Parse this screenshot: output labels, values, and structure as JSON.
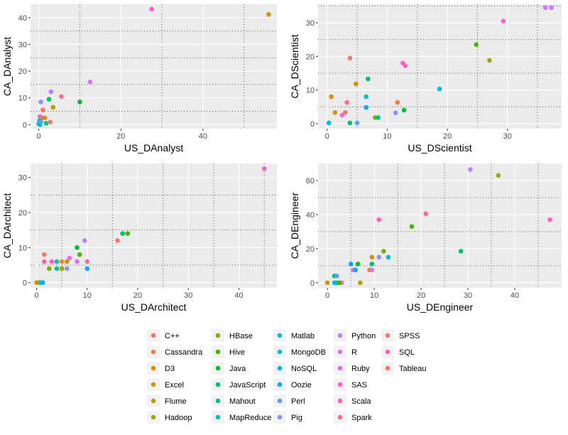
{
  "chart_data": [
    {
      "type": "scatter",
      "xlabel": "US_DAnalyst",
      "ylabel": "CA_DAnalyst",
      "xlim": [
        -2,
        58
      ],
      "ylim": [
        -1.5,
        45
      ],
      "xticks": [
        0,
        20,
        40
      ],
      "yticks": [
        0,
        10,
        20,
        30,
        40
      ],
      "minor_x": [
        10,
        30,
        50
      ],
      "minor_y": [
        5,
        15,
        25,
        35
      ],
      "points": [
        {
          "x": 27.5,
          "y": 43.2,
          "series": "SQL"
        },
        {
          "x": 56.0,
          "y": 41.2,
          "series": "Excel"
        },
        {
          "x": 12.5,
          "y": 16.0,
          "series": "R"
        },
        {
          "x": 10.0,
          "y": 8.5,
          "series": "Java"
        },
        {
          "x": 5.5,
          "y": 10.5,
          "series": "Spark"
        },
        {
          "x": 3.0,
          "y": 12.3,
          "series": "Python"
        },
        {
          "x": 2.5,
          "y": 9.5,
          "series": "JavaScript"
        },
        {
          "x": 3.5,
          "y": 6.5,
          "series": "Flume"
        },
        {
          "x": 0.5,
          "y": 8.5,
          "series": "Pig"
        },
        {
          "x": 1.0,
          "y": 5.5,
          "series": "C++"
        },
        {
          "x": 1.5,
          "y": 2.5,
          "series": "Cassandra"
        },
        {
          "x": 0.8,
          "y": 2.5,
          "series": "Hadoop"
        },
        {
          "x": 0.3,
          "y": 3.0,
          "series": "Scala"
        },
        {
          "x": 2.8,
          "y": 1.0,
          "series": "Tableau"
        },
        {
          "x": 1.8,
          "y": 0.5,
          "series": "Mahout"
        },
        {
          "x": 0.2,
          "y": 1.5,
          "series": "MongoDB"
        },
        {
          "x": 0.1,
          "y": 0.5,
          "series": "NoSQL"
        },
        {
          "x": 0.3,
          "y": 0.0,
          "series": "Oozie"
        },
        {
          "x": 0.0,
          "y": 0.3,
          "series": "Matlab"
        },
        {
          "x": 0.5,
          "y": 1.0,
          "series": "Perl"
        }
      ]
    },
    {
      "type": "scatter",
      "xlabel": "US_DScientist",
      "ylabel": "CA_DScientist",
      "xlim": [
        -1.5,
        39
      ],
      "ylim": [
        -1.5,
        35.5
      ],
      "xticks": [
        0,
        10,
        20,
        30
      ],
      "yticks": [
        0,
        10,
        20,
        30
      ],
      "minor_x": [
        5,
        15,
        25,
        35
      ],
      "minor_y": [
        5,
        15,
        25,
        35
      ],
      "points": [
        {
          "x": 36.3,
          "y": 34.5,
          "series": "R"
        },
        {
          "x": 37.3,
          "y": 34.5,
          "series": "Python"
        },
        {
          "x": 29.3,
          "y": 30.5,
          "series": "SQL"
        },
        {
          "x": 24.8,
          "y": 23.5,
          "series": "Hive"
        },
        {
          "x": 27.0,
          "y": 18.8,
          "series": "Hadoop"
        },
        {
          "x": 3.8,
          "y": 19.5,
          "series": "C++"
        },
        {
          "x": 12.6,
          "y": 18.0,
          "series": "Scala"
        },
        {
          "x": 13.0,
          "y": 17.2,
          "series": "SAS"
        },
        {
          "x": 6.8,
          "y": 13.3,
          "series": "JavaScript"
        },
        {
          "x": 4.8,
          "y": 11.8,
          "series": "Flume"
        },
        {
          "x": 18.7,
          "y": 10.3,
          "series": "MongoDB"
        },
        {
          "x": 0.7,
          "y": 8.0,
          "series": "D3"
        },
        {
          "x": 6.5,
          "y": 8.0,
          "series": "Matlab"
        },
        {
          "x": 11.7,
          "y": 6.3,
          "series": "Cassandra"
        },
        {
          "x": 3.3,
          "y": 6.3,
          "series": "Spark"
        },
        {
          "x": 6.5,
          "y": 4.8,
          "series": "Oozie"
        },
        {
          "x": 12.8,
          "y": 4.0,
          "series": "Java"
        },
        {
          "x": 11.4,
          "y": 3.2,
          "series": "Pig"
        },
        {
          "x": 1.3,
          "y": 3.3,
          "series": "Excel"
        },
        {
          "x": 2.5,
          "y": 2.5,
          "series": "Ruby"
        },
        {
          "x": 3.0,
          "y": 3.3,
          "series": "Tableau"
        },
        {
          "x": 8.0,
          "y": 1.8,
          "series": "HBase"
        },
        {
          "x": 8.5,
          "y": 1.8,
          "series": "Mahout"
        },
        {
          "x": 3.8,
          "y": 0.2,
          "series": "JavaScript"
        },
        {
          "x": 0.3,
          "y": 0.2,
          "series": "NoSQL"
        },
        {
          "x": 5.0,
          "y": 0.2,
          "series": "Perl"
        }
      ]
    },
    {
      "type": "scatter",
      "xlabel": "US_DArchitect",
      "ylabel": "CA_DArchitect",
      "xlim": [
        -1.2,
        47.5
      ],
      "ylim": [
        -1.5,
        34
      ],
      "xticks": [
        0,
        10,
        20,
        30,
        40
      ],
      "yticks": [
        0,
        10,
        20,
        30
      ],
      "minor_x": [
        5,
        15,
        25,
        35,
        45
      ],
      "minor_y": [
        5,
        15,
        25
      ],
      "points": [
        {
          "x": 45.0,
          "y": 32.5,
          "series": "SQL"
        },
        {
          "x": 17.0,
          "y": 14.0,
          "series": "JavaScript"
        },
        {
          "x": 18.0,
          "y": 14.0,
          "series": "Hive"
        },
        {
          "x": 16.0,
          "y": 12.0,
          "series": "Tableau"
        },
        {
          "x": 9.5,
          "y": 12.0,
          "series": "Python"
        },
        {
          "x": 8.0,
          "y": 10.0,
          "series": "Java"
        },
        {
          "x": 1.5,
          "y": 8.0,
          "series": "C++"
        },
        {
          "x": 8.5,
          "y": 8.0,
          "series": "Hive"
        },
        {
          "x": 6.5,
          "y": 7.0,
          "series": "Ruby"
        },
        {
          "x": 1.5,
          "y": 6.0,
          "series": "Scala"
        },
        {
          "x": 3.0,
          "y": 6.0,
          "series": "SAS"
        },
        {
          "x": 4.0,
          "y": 6.0,
          "series": "MapReduce"
        },
        {
          "x": 5.0,
          "y": 6.0,
          "series": "Cassandra"
        },
        {
          "x": 6.0,
          "y": 6.0,
          "series": "Flume"
        },
        {
          "x": 8.0,
          "y": 6.0,
          "series": "R"
        },
        {
          "x": 10.0,
          "y": 6.0,
          "series": "Spark"
        },
        {
          "x": 2.5,
          "y": 4.0,
          "series": "HBase"
        },
        {
          "x": 4.0,
          "y": 4.0,
          "series": "Mahout"
        },
        {
          "x": 5.0,
          "y": 4.0,
          "series": "Hadoop"
        },
        {
          "x": 6.0,
          "y": 4.0,
          "series": "Pig"
        },
        {
          "x": 10.0,
          "y": 4.0,
          "series": "Oozie"
        },
        {
          "x": 0.0,
          "y": 0.0,
          "series": "Excel"
        },
        {
          "x": 0.4,
          "y": 0.0,
          "series": "D3"
        },
        {
          "x": 0.8,
          "y": 0.0,
          "series": "MongoDB"
        },
        {
          "x": 1.2,
          "y": 0.0,
          "series": "NoSQL"
        }
      ]
    },
    {
      "type": "scatter",
      "xlabel": "US_DEngineer",
      "ylabel": "CA_DEngineer",
      "xlim": [
        -2,
        50
      ],
      "ylim": [
        -3,
        70
      ],
      "xticks": [
        0,
        10,
        20,
        30,
        40
      ],
      "yticks": [
        0,
        20,
        40,
        60
      ],
      "minor_x": [
        5,
        15,
        25,
        35,
        45
      ],
      "minor_y": [
        10,
        30,
        50
      ],
      "points": [
        {
          "x": 30.5,
          "y": 66.5,
          "series": "Python"
        },
        {
          "x": 36.5,
          "y": 63.0,
          "series": "Hadoop"
        },
        {
          "x": 21.0,
          "y": 40.5,
          "series": "Spark"
        },
        {
          "x": 11.0,
          "y": 37.0,
          "series": "SAS"
        },
        {
          "x": 47.5,
          "y": 37.0,
          "series": "SQL"
        },
        {
          "x": 18.0,
          "y": 33.0,
          "series": "Hive"
        },
        {
          "x": 28.5,
          "y": 18.5,
          "series": "JavaScript"
        },
        {
          "x": 12.0,
          "y": 18.5,
          "series": "HBase"
        },
        {
          "x": 9.5,
          "y": 15.0,
          "series": "D3"
        },
        {
          "x": 11.0,
          "y": 15.0,
          "series": "Pig"
        },
        {
          "x": 13.0,
          "y": 15.0,
          "series": "Matlab"
        },
        {
          "x": 5.0,
          "y": 11.0,
          "series": "Oozie"
        },
        {
          "x": 6.5,
          "y": 11.0,
          "series": "Java"
        },
        {
          "x": 9.5,
          "y": 11.0,
          "series": "JavaScript"
        },
        {
          "x": 5.5,
          "y": 7.5,
          "series": "Ruby"
        },
        {
          "x": 6.0,
          "y": 7.5,
          "series": "Oozie"
        },
        {
          "x": 9.0,
          "y": 7.5,
          "series": "Cassandra"
        },
        {
          "x": 9.5,
          "y": 7.5,
          "series": "R"
        },
        {
          "x": 1.5,
          "y": 4.0,
          "series": "JavaScript"
        },
        {
          "x": 2.0,
          "y": 4.0,
          "series": "Perl"
        },
        {
          "x": 2.0,
          "y": 0.0,
          "series": "Mahout"
        },
        {
          "x": 3.0,
          "y": 0.0,
          "series": "Scala"
        },
        {
          "x": 0.0,
          "y": 0.0,
          "series": "Excel"
        },
        {
          "x": 7.0,
          "y": 0.0,
          "series": "Flume"
        },
        {
          "x": 2.5,
          "y": 0.0,
          "series": "Hive"
        },
        {
          "x": 1.5,
          "y": 0.0,
          "series": "NoSQL"
        }
      ]
    }
  ],
  "legend": {
    "placement": "bottom",
    "entries": [
      {
        "name": "C++",
        "color": "#F8766D"
      },
      {
        "name": "Cassandra",
        "color": "#ED813E"
      },
      {
        "name": "D3",
        "color": "#DE8C00"
      },
      {
        "name": "Excel",
        "color": "#CD9600"
      },
      {
        "name": "Flume",
        "color": "#B79F00"
      },
      {
        "name": "Hadoop",
        "color": "#9DA700"
      },
      {
        "name": "HBase",
        "color": "#7CAE00"
      },
      {
        "name": "Hive",
        "color": "#49B500"
      },
      {
        "name": "Java",
        "color": "#00BA38"
      },
      {
        "name": "JavaScript",
        "color": "#00BE6C"
      },
      {
        "name": "Mahout",
        "color": "#00C08B"
      },
      {
        "name": "MapReduce",
        "color": "#00C1A7"
      },
      {
        "name": "Matlab",
        "color": "#00BFC4"
      },
      {
        "name": "MongoDB",
        "color": "#00BBDC"
      },
      {
        "name": "NoSQL",
        "color": "#00B4F0"
      },
      {
        "name": "Oozie",
        "color": "#00A9FF"
      },
      {
        "name": "Perl",
        "color": "#619CFF"
      },
      {
        "name": "Pig",
        "color": "#8F91FF"
      },
      {
        "name": "Python",
        "color": "#B983FF"
      },
      {
        "name": "R",
        "color": "#DB72FB"
      },
      {
        "name": "Ruby",
        "color": "#F066EA"
      },
      {
        "name": "SAS",
        "color": "#FF61C3"
      },
      {
        "name": "Scala",
        "color": "#FF63B6"
      },
      {
        "name": "Spark",
        "color": "#FF6C91"
      },
      {
        "name": "SPSS",
        "color": "#F8766D"
      },
      {
        "name": "SQL",
        "color": "#FF61C3"
      },
      {
        "name": "Tableau",
        "color": "#F8766D"
      }
    ]
  }
}
